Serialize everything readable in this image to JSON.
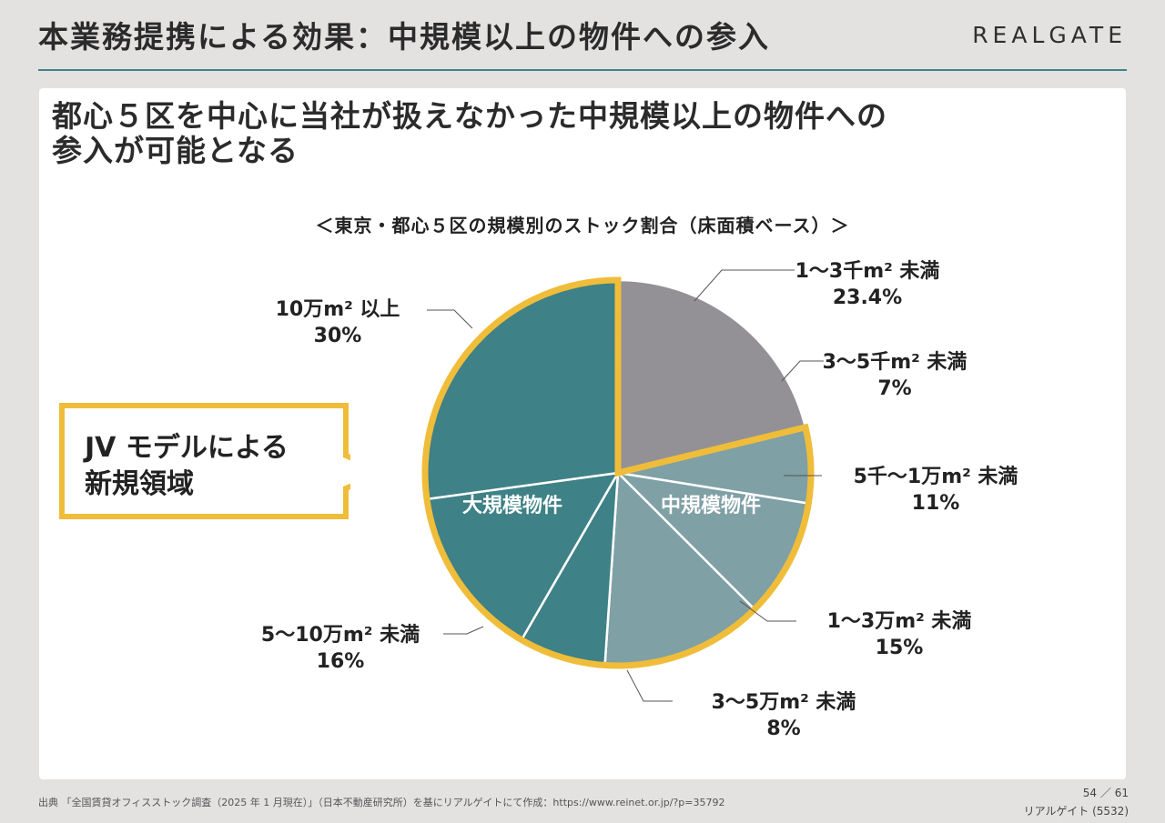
{
  "header": {
    "title": "本業務提携による効果：中規模以上の物件への参入",
    "logo": "REALGATE"
  },
  "headline": {
    "line1": "都心５区を中心に当社が扱えなかった中規模以上の物件への",
    "line2": "参入が可能となる"
  },
  "chart_data": {
    "type": "pie",
    "title": "＜東京・都心５区の規模別のストック割合（床面積ベース）＞",
    "slices": [
      {
        "label": "1〜3千m² 未満",
        "value": 23.4,
        "value_label": "23.4%",
        "color": "#939196"
      },
      {
        "label": "3〜5千m² 未満",
        "value": 7,
        "value_label": "7%",
        "color": "#7fa0a5"
      },
      {
        "label": "5千〜1万m² 未満",
        "value": 11,
        "value_label": "11%",
        "color": "#7fa0a5"
      },
      {
        "label": "1〜3万m² 未満",
        "value": 15,
        "value_label": "15%",
        "color": "#7fa0a5"
      },
      {
        "label": "3〜5万m² 未満",
        "value": 8,
        "value_label": "8%",
        "color": "#3e8186"
      },
      {
        "label": "5〜10万m² 未満",
        "value": 16,
        "value_label": "16%",
        "color": "#3e8186"
      },
      {
        "label": "10万m² 以上",
        "value": 30,
        "value_label": "30%",
        "color": "#3e8186"
      }
    ],
    "group_labels": {
      "medium": "中規模物件",
      "large": "大規模物件"
    },
    "highlight_color": "#f0bd3a"
  },
  "callout": {
    "line1": "JV モデルによる",
    "line2": "新規領域"
  },
  "footer": {
    "source": "出典 「全国賃貸オフィスストック調査（2025 年 1 月現在）」（日本不動産研究所）を基にリアルゲイトにて作成：https://www.reinet.or.jp/?p=35792",
    "page": "54",
    "total": "61",
    "company": "リアルゲイト (5532)"
  }
}
